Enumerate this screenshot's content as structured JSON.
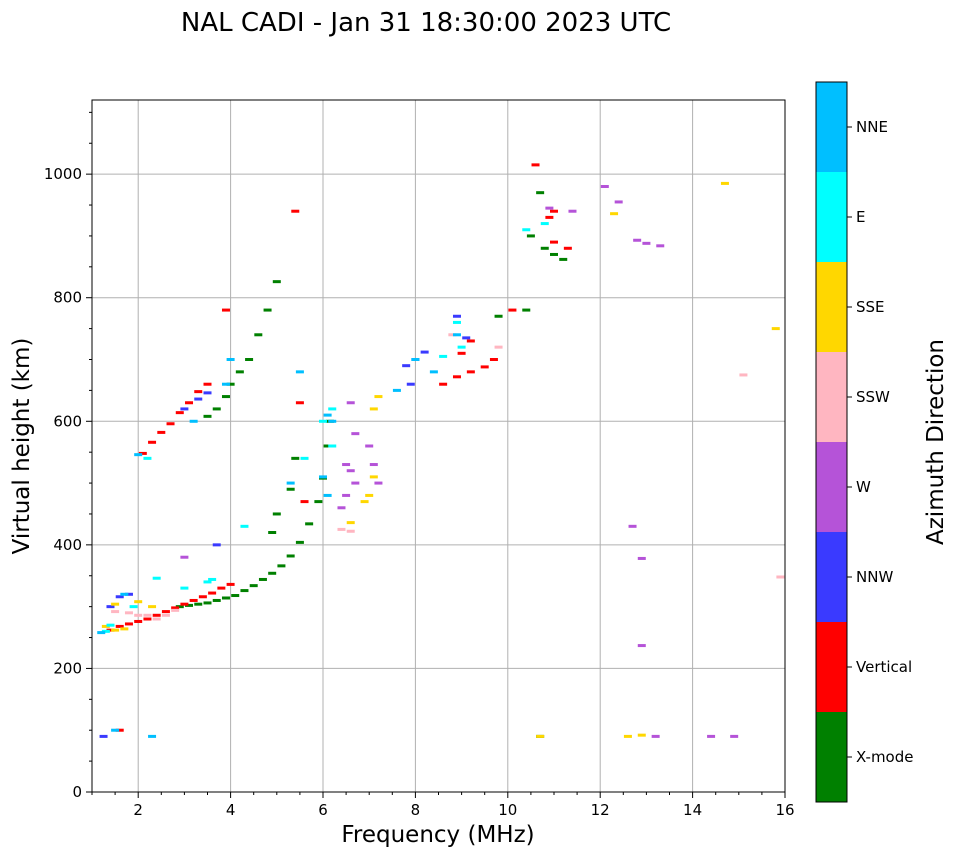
{
  "chart_data": {
    "type": "scatter",
    "title": "NAL CADI - Jan 31 18:30:00 2023 UTC",
    "xlabel": "Frequency (MHz)",
    "ylabel": "Virtual height (km)",
    "xlim": [
      1,
      16
    ],
    "ylim": [
      0,
      1120
    ],
    "xticks": [
      2,
      4,
      6,
      8,
      10,
      12,
      14,
      16
    ],
    "yticks": [
      0,
      200,
      400,
      600,
      800,
      1000
    ],
    "grid": true,
    "colorbar": {
      "label": "Azimuth Direction",
      "categories": [
        {
          "name": "X-mode",
          "color": "#008000"
        },
        {
          "name": "Vertical",
          "color": "#ff0000"
        },
        {
          "name": "NNW",
          "color": "#3a3aff"
        },
        {
          "name": "W",
          "color": "#b553d8"
        },
        {
          "name": "SSW",
          "color": "#ffb6c1"
        },
        {
          "name": "SSE",
          "color": "#ffd700"
        },
        {
          "name": "E",
          "color": "#00ffff"
        },
        {
          "name": "NNE",
          "color": "#00bfff"
        }
      ]
    },
    "series": [
      {
        "name": "X-mode",
        "points": [
          [
            2.9,
            300
          ],
          [
            3.1,
            302
          ],
          [
            3.3,
            304
          ],
          [
            3.5,
            306
          ],
          [
            3.7,
            310
          ],
          [
            3.9,
            314
          ],
          [
            4.1,
            318
          ],
          [
            4.3,
            326
          ],
          [
            4.5,
            334
          ],
          [
            4.7,
            344
          ],
          [
            4.9,
            354
          ],
          [
            5.1,
            366
          ],
          [
            5.3,
            382
          ],
          [
            5.5,
            404
          ],
          [
            5.7,
            434
          ],
          [
            5.9,
            470
          ],
          [
            6.0,
            508
          ],
          [
            6.1,
            560
          ],
          [
            6.15,
            600
          ],
          [
            3.5,
            608
          ],
          [
            3.7,
            620
          ],
          [
            3.9,
            640
          ],
          [
            4.0,
            660
          ],
          [
            4.2,
            680
          ],
          [
            4.4,
            700
          ],
          [
            4.6,
            740
          ],
          [
            4.8,
            780
          ],
          [
            5.0,
            826
          ],
          [
            5.4,
            540
          ],
          [
            5.3,
            490
          ],
          [
            5.0,
            450
          ],
          [
            4.9,
            420
          ],
          [
            10.5,
            900
          ],
          [
            10.8,
            880
          ],
          [
            11.0,
            870
          ],
          [
            11.2,
            862
          ],
          [
            9.8,
            770
          ],
          [
            10.4,
            780
          ],
          [
            10.7,
            970
          ],
          [
            10.7,
            90
          ]
        ]
      },
      {
        "name": "Vertical",
        "points": [
          [
            1.4,
            262
          ],
          [
            1.6,
            268
          ],
          [
            1.8,
            272
          ],
          [
            2.0,
            276
          ],
          [
            2.2,
            280
          ],
          [
            2.4,
            286
          ],
          [
            2.6,
            292
          ],
          [
            2.8,
            298
          ],
          [
            3.0,
            304
          ],
          [
            3.2,
            310
          ],
          [
            3.4,
            316
          ],
          [
            3.6,
            322
          ],
          [
            3.8,
            330
          ],
          [
            4.0,
            336
          ],
          [
            2.1,
            548
          ],
          [
            2.3,
            566
          ],
          [
            2.5,
            582
          ],
          [
            2.7,
            596
          ],
          [
            2.9,
            614
          ],
          [
            3.1,
            630
          ],
          [
            3.3,
            648
          ],
          [
            3.5,
            660
          ],
          [
            3.9,
            780
          ],
          [
            5.4,
            940
          ],
          [
            5.6,
            470
          ],
          [
            5.5,
            630
          ],
          [
            8.6,
            660
          ],
          [
            8.9,
            672
          ],
          [
            9.2,
            680
          ],
          [
            9.5,
            688
          ],
          [
            9.7,
            700
          ],
          [
            10.1,
            780
          ],
          [
            9.0,
            710
          ],
          [
            9.2,
            730
          ],
          [
            11.0,
            890
          ],
          [
            11.3,
            880
          ],
          [
            10.6,
            1015
          ],
          [
            10.9,
            930
          ],
          [
            11.0,
            940
          ],
          [
            1.6,
            100
          ]
        ]
      },
      {
        "name": "NNW",
        "points": [
          [
            1.4,
            300
          ],
          [
            1.6,
            316
          ],
          [
            1.8,
            320
          ],
          [
            3.0,
            620
          ],
          [
            3.3,
            636
          ],
          [
            3.5,
            646
          ],
          [
            7.8,
            690
          ],
          [
            7.9,
            660
          ],
          [
            8.0,
            700
          ],
          [
            8.2,
            712
          ],
          [
            8.9,
            770
          ],
          [
            9.1,
            735
          ],
          [
            1.25,
            90
          ],
          [
            3.7,
            400
          ]
        ]
      },
      {
        "name": "W",
        "points": [
          [
            6.5,
            530
          ],
          [
            6.6,
            520
          ],
          [
            6.7,
            500
          ],
          [
            6.5,
            480
          ],
          [
            6.4,
            460
          ],
          [
            6.6,
            630
          ],
          [
            6.7,
            580
          ],
          [
            7.0,
            560
          ],
          [
            7.1,
            530
          ],
          [
            7.2,
            500
          ],
          [
            3.0,
            380
          ],
          [
            12.7,
            430
          ],
          [
            12.9,
            378
          ],
          [
            12.9,
            237
          ],
          [
            13.2,
            90
          ],
          [
            14.4,
            90
          ],
          [
            14.9,
            90
          ],
          [
            12.1,
            980
          ],
          [
            12.4,
            955
          ],
          [
            12.8,
            893
          ],
          [
            13.0,
            888
          ],
          [
            13.3,
            884
          ],
          [
            10.9,
            945
          ],
          [
            11.4,
            940
          ]
        ]
      },
      {
        "name": "SSW",
        "points": [
          [
            1.5,
            292
          ],
          [
            1.8,
            290
          ],
          [
            2.0,
            286
          ],
          [
            2.2,
            286
          ],
          [
            2.4,
            280
          ],
          [
            2.6,
            286
          ],
          [
            2.8,
            294
          ],
          [
            6.4,
            425
          ],
          [
            6.6,
            422
          ],
          [
            8.8,
            740
          ],
          [
            9.8,
            720
          ],
          [
            15.1,
            675
          ],
          [
            15.9,
            348
          ]
        ]
      },
      {
        "name": "SSE",
        "points": [
          [
            1.3,
            268
          ],
          [
            1.5,
            262
          ],
          [
            1.7,
            264
          ],
          [
            1.5,
            304
          ],
          [
            2.0,
            308
          ],
          [
            2.3,
            300
          ],
          [
            6.6,
            436
          ],
          [
            6.9,
            470
          ],
          [
            7.0,
            480
          ],
          [
            7.1,
            510
          ],
          [
            7.2,
            640
          ],
          [
            7.1,
            620
          ],
          [
            12.3,
            936
          ],
          [
            12.6,
            90
          ],
          [
            12.9,
            92
          ],
          [
            14.7,
            985
          ],
          [
            15.8,
            750
          ],
          [
            10.7,
            90
          ]
        ]
      },
      {
        "name": "E",
        "points": [
          [
            1.3,
            260
          ],
          [
            1.4,
            270
          ],
          [
            1.9,
            300
          ],
          [
            2.4,
            346
          ],
          [
            2.2,
            540
          ],
          [
            3.0,
            330
          ],
          [
            3.5,
            340
          ],
          [
            3.6,
            344
          ],
          [
            6.2,
            560
          ],
          [
            6.0,
            600
          ],
          [
            5.6,
            540
          ],
          [
            4.3,
            430
          ],
          [
            6.2,
            620
          ],
          [
            8.6,
            705
          ],
          [
            8.9,
            760
          ],
          [
            9.0,
            720
          ],
          [
            10.4,
            910
          ],
          [
            10.8,
            920
          ]
        ]
      },
      {
        "name": "NNE",
        "points": [
          [
            1.2,
            258
          ],
          [
            1.7,
            320
          ],
          [
            2.0,
            546
          ],
          [
            3.2,
            600
          ],
          [
            3.9,
            660
          ],
          [
            4.0,
            700
          ],
          [
            5.5,
            680
          ],
          [
            5.3,
            500
          ],
          [
            6.1,
            480
          ],
          [
            6.0,
            510
          ],
          [
            6.1,
            610
          ],
          [
            6.2,
            600
          ],
          [
            7.6,
            650
          ],
          [
            8.0,
            700
          ],
          [
            8.4,
            680
          ],
          [
            8.9,
            740
          ],
          [
            2.3,
            90
          ],
          [
            1.5,
            100
          ]
        ]
      }
    ]
  }
}
